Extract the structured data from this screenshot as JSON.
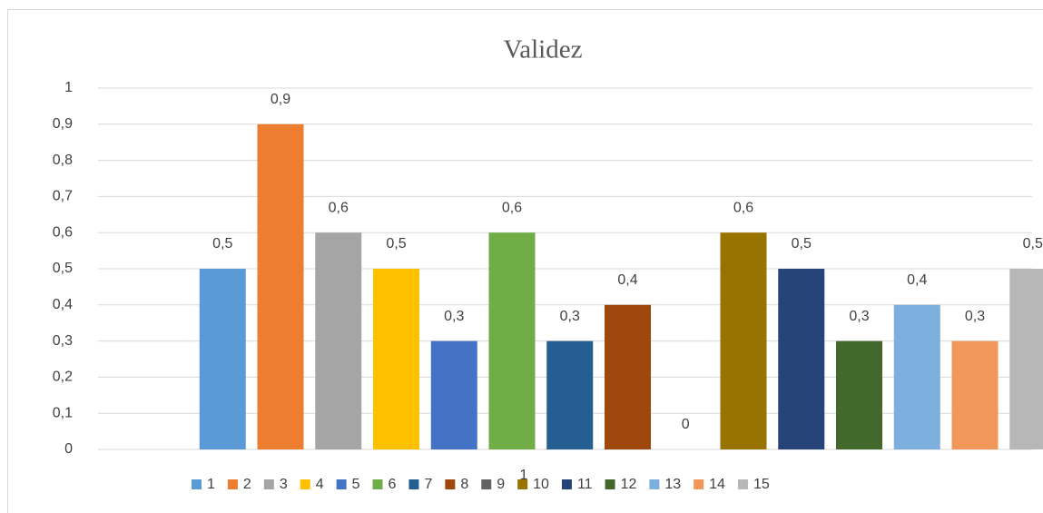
{
  "chart_data": {
    "type": "bar",
    "title": "Validez",
    "categories": [
      "1"
    ],
    "series": [
      {
        "name": "1",
        "color": "#5b9bd5",
        "values": [
          0.5
        ],
        "value_labels": [
          "0,5"
        ]
      },
      {
        "name": "2",
        "color": "#ed7d31",
        "values": [
          0.9
        ],
        "value_labels": [
          "0,9"
        ]
      },
      {
        "name": "3",
        "color": "#a5a5a5",
        "values": [
          0.6
        ],
        "value_labels": [
          "0,6"
        ]
      },
      {
        "name": "4",
        "color": "#ffc000",
        "values": [
          0.5
        ],
        "value_labels": [
          "0,5"
        ]
      },
      {
        "name": "5",
        "color": "#4472c4",
        "values": [
          0.3
        ],
        "value_labels": [
          "0,3"
        ]
      },
      {
        "name": "6",
        "color": "#70ad47",
        "values": [
          0.6
        ],
        "value_labels": [
          "0,6"
        ]
      },
      {
        "name": "7",
        "color": "#255e91",
        "values": [
          0.3
        ],
        "value_labels": [
          "0,3"
        ]
      },
      {
        "name": "8",
        "color": "#9e480e",
        "values": [
          0.4
        ],
        "value_labels": [
          "0,4"
        ]
      },
      {
        "name": "9",
        "color": "#636363",
        "values": [
          0
        ]
      },
      {
        "name": "10",
        "color": "#997300",
        "values": [
          0.6
        ],
        "value_labels": [
          "0,6"
        ]
      },
      {
        "name": "11",
        "color": "#264478",
        "values": [
          0.5
        ],
        "value_labels": [
          "0,5"
        ]
      },
      {
        "name": "12",
        "color": "#43682b",
        "values": [
          0.3
        ],
        "value_labels": [
          "0,3"
        ]
      },
      {
        "name": "13",
        "color": "#7cafdd",
        "values": [
          0.4
        ],
        "value_labels": [
          "0,4"
        ]
      },
      {
        "name": "14",
        "color": "#f1975a",
        "values": [
          0.3
        ],
        "value_labels": [
          "0,3"
        ]
      },
      {
        "name": "15",
        "color": "#b7b7b7",
        "values": [
          0.5
        ],
        "value_labels": [
          "0,5"
        ]
      }
    ],
    "ylim": [
      0,
      1
    ],
    "yticks": [
      0,
      {
        "value": 0.1,
        "label": "0,1"
      },
      {
        "value": 0.2,
        "label": "0,2"
      },
      {
        "value": 0.3,
        "label": "0,3"
      },
      {
        "value": 0.4,
        "label": "0,4"
      },
      {
        "value": 0.5,
        "label": "0,5"
      },
      {
        "value": 0.6,
        "label": "0,6"
      },
      {
        "value": 0.7,
        "label": "0,7"
      },
      {
        "value": 0.8,
        "label": "0,8"
      },
      {
        "value": 0.9,
        "label": "0,9"
      },
      1
    ],
    "grid": true,
    "legend": "bottom"
  }
}
